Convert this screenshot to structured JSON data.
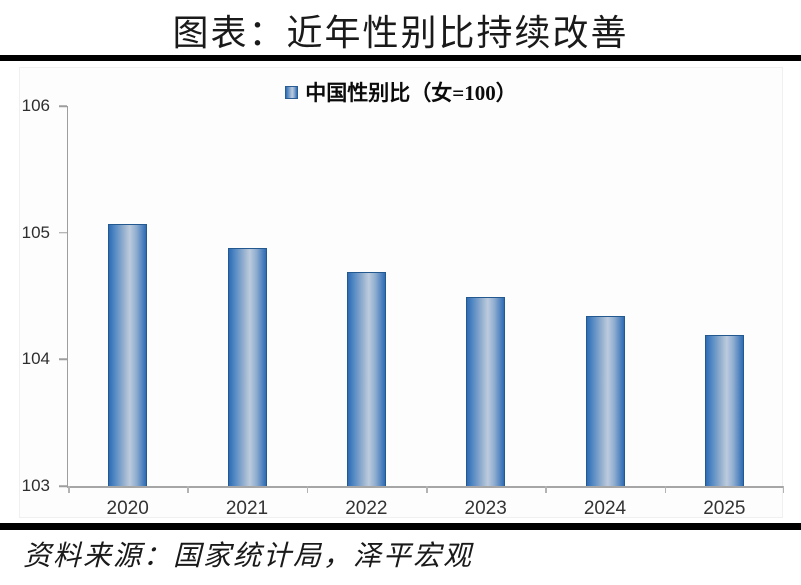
{
  "chart_data": {
    "type": "bar",
    "title": "图表：近年性别比持续改善",
    "legend": "中国性别比（女=100）",
    "categories": [
      "2020",
      "2021",
      "2022",
      "2023",
      "2024",
      "2025"
    ],
    "values": [
      105.07,
      104.88,
      104.69,
      104.49,
      104.34,
      104.19
    ],
    "ylim": [
      103,
      106
    ],
    "yticks": [
      106,
      105,
      104,
      103
    ],
    "grid": false,
    "legend_position": "top-center",
    "bar_color_edge": "#2e6cb5",
    "bar_color_center": "#bccbdd",
    "bar_border_color": "#24598f",
    "axis_color": "#a6a6a6",
    "source": "资料来源：国家统计局，泽平宏观"
  }
}
